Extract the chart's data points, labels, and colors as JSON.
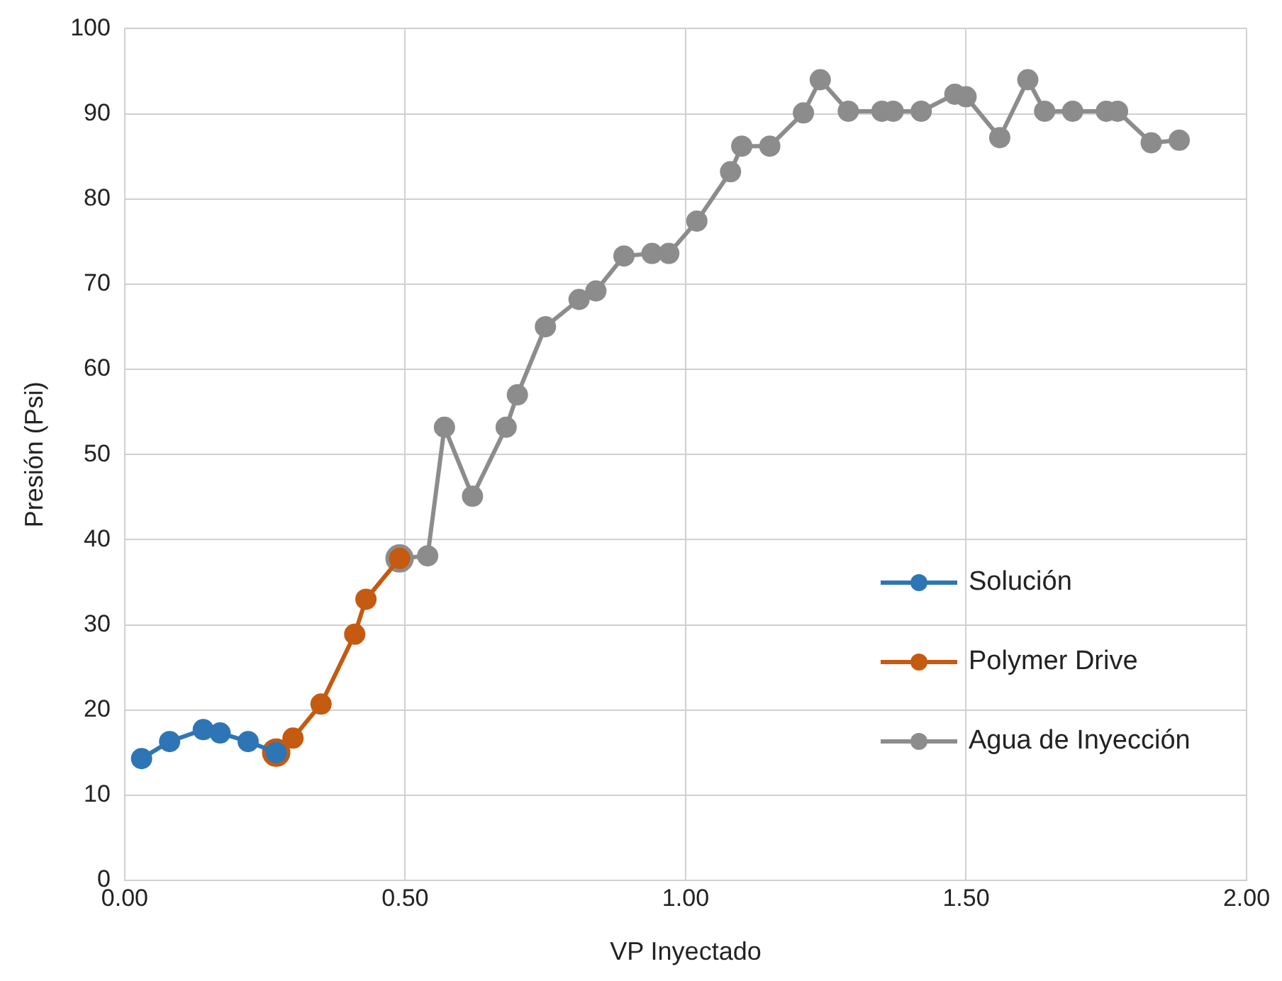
{
  "chart_data": {
    "type": "line",
    "xlabel": "VP Inyectado",
    "ylabel": "Presión (Psi)",
    "xlim": [
      0,
      2
    ],
    "xticks": [
      {
        "value": 0,
        "label": "0.00"
      },
      {
        "value": 0.5,
        "label": "0.50"
      },
      {
        "value": 1,
        "label": "1.00"
      },
      {
        "value": 1.5,
        "label": "1.50"
      },
      {
        "value": 2,
        "label": "2.00"
      }
    ],
    "ylim": [
      0,
      100
    ],
    "yticks": [
      0,
      10,
      20,
      30,
      40,
      50,
      60,
      70,
      80,
      90,
      100
    ],
    "grid": true,
    "legend": "bottom right",
    "marker": "circle",
    "line_style": "solid",
    "series": [
      {
        "name": "Solución",
        "color": "#2e75b6",
        "x": [
          0.03,
          0.08,
          0.14,
          0.17,
          0.22,
          0.27
        ],
        "values": [
          14.3,
          16.3,
          17.7,
          17.3,
          16.3,
          15.0
        ]
      },
      {
        "name": "Polymer Drive",
        "color": "#c55a11",
        "x": [
          0.27,
          0.3,
          0.35,
          0.41,
          0.43,
          0.49
        ],
        "values": [
          15.0,
          16.7,
          20.7,
          28.9,
          33.0,
          37.8
        ]
      },
      {
        "name": "Agua de Inyección",
        "color": "#8c8c8c",
        "x": [
          0.49,
          0.54,
          0.57,
          0.62,
          0.68,
          0.7,
          0.75,
          0.81,
          0.84,
          0.89,
          0.94,
          0.97,
          1.02,
          1.08,
          1.1,
          1.15,
          1.21,
          1.24,
          1.29,
          1.35,
          1.37,
          1.42,
          1.48,
          1.5,
          1.56,
          1.61,
          1.64,
          1.69,
          1.75,
          1.77,
          1.83,
          1.88
        ],
        "values": [
          37.8,
          38.1,
          53.2,
          45.1,
          53.2,
          57.0,
          65.0,
          68.2,
          69.2,
          73.3,
          73.6,
          73.6,
          77.4,
          83.2,
          86.2,
          86.2,
          90.1,
          94.0,
          90.3,
          90.3,
          90.3,
          90.3,
          92.3,
          92.0,
          87.2,
          94.0,
          90.3,
          90.3,
          90.3,
          90.3,
          86.6,
          86.9
        ]
      }
    ]
  }
}
